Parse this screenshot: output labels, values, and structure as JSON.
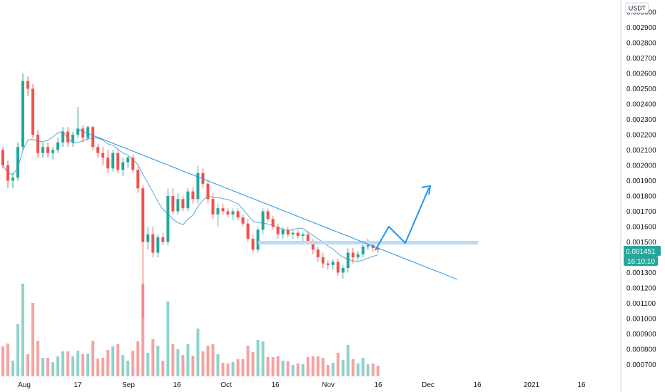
{
  "colors": {
    "up": "#26a69a",
    "down": "#ef5350",
    "vol_up": "#8fd3cb",
    "vol_down": "#f5a3a3",
    "trend": "#2196f3",
    "ma": "#5aa9d6",
    "support_zone": "#b8dcf5",
    "badge": "#26a69a",
    "axis_line": "#d1d4dc"
  },
  "price_axis": {
    "unit": "USDT",
    "ticks": [
      "0.003000",
      "0.002900",
      "0.002800",
      "0.002700",
      "0.002600",
      "0.002500",
      "0.002400",
      "0.002300",
      "0.002200",
      "0.002100",
      "0.002000",
      "0.001900",
      "0.001800",
      "0.001700",
      "0.001600",
      "0.001500",
      "0.001400",
      "0.001300",
      "0.001200",
      "0.001100",
      "0.001000",
      "0.000900",
      "0.000800",
      "0.000700"
    ]
  },
  "last_price": {
    "value": "0.001451",
    "countdown": "16:10:10"
  },
  "time_axis": {
    "labels": [
      "Aug",
      "17",
      "Sep",
      "16",
      "Oct",
      "16",
      "Nov",
      "16",
      "Dec",
      "16",
      "2021",
      "16"
    ]
  },
  "chart_data": {
    "type": "candlestick",
    "ylim": [
      0.00065,
      0.00305
    ],
    "y_log": false,
    "grid": false,
    "x_labels": [
      "Aug",
      "17",
      "Sep",
      "16",
      "Oct",
      "16",
      "Nov",
      "16",
      "Dec",
      "16",
      "2021",
      "16"
    ],
    "candles_approx": [
      [
        0.0021,
        0.00212,
        0.00198,
        0.002
      ],
      [
        0.002,
        0.00203,
        0.00185,
        0.0019
      ],
      [
        0.0019,
        0.00195,
        0.00185,
        0.00192
      ],
      [
        0.00192,
        0.00215,
        0.0019,
        0.00212
      ],
      [
        0.00212,
        0.0026,
        0.0021,
        0.00255
      ],
      [
        0.00255,
        0.00258,
        0.00245,
        0.0025
      ],
      [
        0.0025,
        0.00253,
        0.00218,
        0.0022
      ],
      [
        0.0022,
        0.00223,
        0.00205,
        0.00208
      ],
      [
        0.00208,
        0.00215,
        0.00205,
        0.00212
      ],
      [
        0.00212,
        0.00215,
        0.00205,
        0.00208
      ],
      [
        0.00208,
        0.00212,
        0.00204,
        0.0021
      ],
      [
        0.0021,
        0.00218,
        0.00208,
        0.00215
      ],
      [
        0.00215,
        0.00225,
        0.00212,
        0.00222
      ],
      [
        0.00222,
        0.00225,
        0.00212,
        0.00215
      ],
      [
        0.00215,
        0.00222,
        0.00212,
        0.0022
      ],
      [
        0.0022,
        0.00238,
        0.00218,
        0.00224
      ],
      [
        0.00224,
        0.00226,
        0.00215,
        0.00218
      ],
      [
        0.00218,
        0.00226,
        0.00216,
        0.00225
      ],
      [
        0.00225,
        0.00226,
        0.0021,
        0.00212
      ],
      [
        0.00212,
        0.00214,
        0.00205,
        0.00208
      ],
      [
        0.00208,
        0.00212,
        0.002,
        0.00205
      ],
      [
        0.00205,
        0.0021,
        0.00195,
        0.00198
      ],
      [
        0.00198,
        0.0021,
        0.00196,
        0.00208
      ],
      [
        0.00208,
        0.0021,
        0.00195,
        0.00197
      ],
      [
        0.00197,
        0.00205,
        0.00193,
        0.00202
      ],
      [
        0.00202,
        0.00206,
        0.00198,
        0.00205
      ],
      [
        0.00205,
        0.00207,
        0.00195,
        0.00197
      ],
      [
        0.00197,
        0.00199,
        0.00182,
        0.00185
      ],
      [
        0.00185,
        0.00187,
        0.001,
        0.0015
      ],
      [
        0.0015,
        0.0016,
        0.00145,
        0.00155
      ],
      [
        0.00155,
        0.0016,
        0.0014,
        0.00143
      ],
      [
        0.00143,
        0.00155,
        0.0014,
        0.00153
      ],
      [
        0.00153,
        0.00156,
        0.00148,
        0.0015
      ],
      [
        0.0015,
        0.00185,
        0.00148,
        0.0018
      ],
      [
        0.0018,
        0.00185,
        0.00168,
        0.0017
      ],
      [
        0.0017,
        0.00182,
        0.00168,
        0.00178
      ],
      [
        0.00178,
        0.0018,
        0.0017,
        0.00172
      ],
      [
        0.00172,
        0.00185,
        0.0017,
        0.00183
      ],
      [
        0.00183,
        0.00186,
        0.00175,
        0.00178
      ],
      [
        0.00178,
        0.002,
        0.00175,
        0.00195
      ],
      [
        0.00195,
        0.00198,
        0.00185,
        0.00188
      ],
      [
        0.00188,
        0.0019,
        0.00175,
        0.00178
      ],
      [
        0.00178,
        0.00182,
        0.00165,
        0.00168
      ],
      [
        0.00168,
        0.00175,
        0.0016,
        0.00172
      ],
      [
        0.00172,
        0.00175,
        0.00168,
        0.0017
      ],
      [
        0.0017,
        0.00172,
        0.00166,
        0.00168
      ],
      [
        0.00168,
        0.00172,
        0.00164,
        0.0017
      ],
      [
        0.0017,
        0.00172,
        0.00164,
        0.00166
      ],
      [
        0.00166,
        0.00168,
        0.0016,
        0.00162
      ],
      [
        0.00162,
        0.00165,
        0.0015,
        0.00152
      ],
      [
        0.00152,
        0.00155,
        0.00143,
        0.00145
      ],
      [
        0.00145,
        0.0016,
        0.00143,
        0.00158
      ],
      [
        0.00158,
        0.00172,
        0.00155,
        0.0017
      ],
      [
        0.0017,
        0.00172,
        0.00163,
        0.00165
      ],
      [
        0.00165,
        0.00167,
        0.00158,
        0.0016
      ],
      [
        0.0016,
        0.00162,
        0.00152,
        0.00155
      ],
      [
        0.00155,
        0.0016,
        0.00152,
        0.00158
      ],
      [
        0.00158,
        0.0016,
        0.00153,
        0.00155
      ],
      [
        0.00155,
        0.00158,
        0.00152,
        0.00156
      ],
      [
        0.00156,
        0.00158,
        0.00152,
        0.00154
      ],
      [
        0.00154,
        0.00157,
        0.0015,
        0.00155
      ],
      [
        0.00155,
        0.00157,
        0.00148,
        0.0015
      ],
      [
        0.0015,
        0.00152,
        0.00142,
        0.00145
      ],
      [
        0.00145,
        0.00147,
        0.00137,
        0.0014
      ],
      [
        0.0014,
        0.00143,
        0.00133,
        0.00136
      ],
      [
        0.00136,
        0.00138,
        0.00132,
        0.00135
      ],
      [
        0.00135,
        0.00139,
        0.00132,
        0.00137
      ],
      [
        0.00137,
        0.00139,
        0.00128,
        0.0013
      ],
      [
        0.0013,
        0.00135,
        0.00126,
        0.00133
      ],
      [
        0.00133,
        0.00146,
        0.0013,
        0.00143
      ],
      [
        0.00143,
        0.00146,
        0.00136,
        0.0014
      ],
      [
        0.0014,
        0.00144,
        0.00138,
        0.00142
      ],
      [
        0.00142,
        0.00148,
        0.0014,
        0.00147
      ],
      [
        0.00147,
        0.00152,
        0.00145,
        0.00148
      ],
      [
        0.00148,
        0.0015,
        0.00144,
        0.00146
      ],
      [
        0.00146,
        0.00148,
        0.00143,
        0.00145
      ]
    ],
    "trend_line": {
      "from_price": 0.00225,
      "to_price": 0.00125
    },
    "support_zone_price": 0.0015,
    "projected_path_prices": [
      0.00145,
      0.0016,
      0.0015,
      0.00187
    ]
  }
}
